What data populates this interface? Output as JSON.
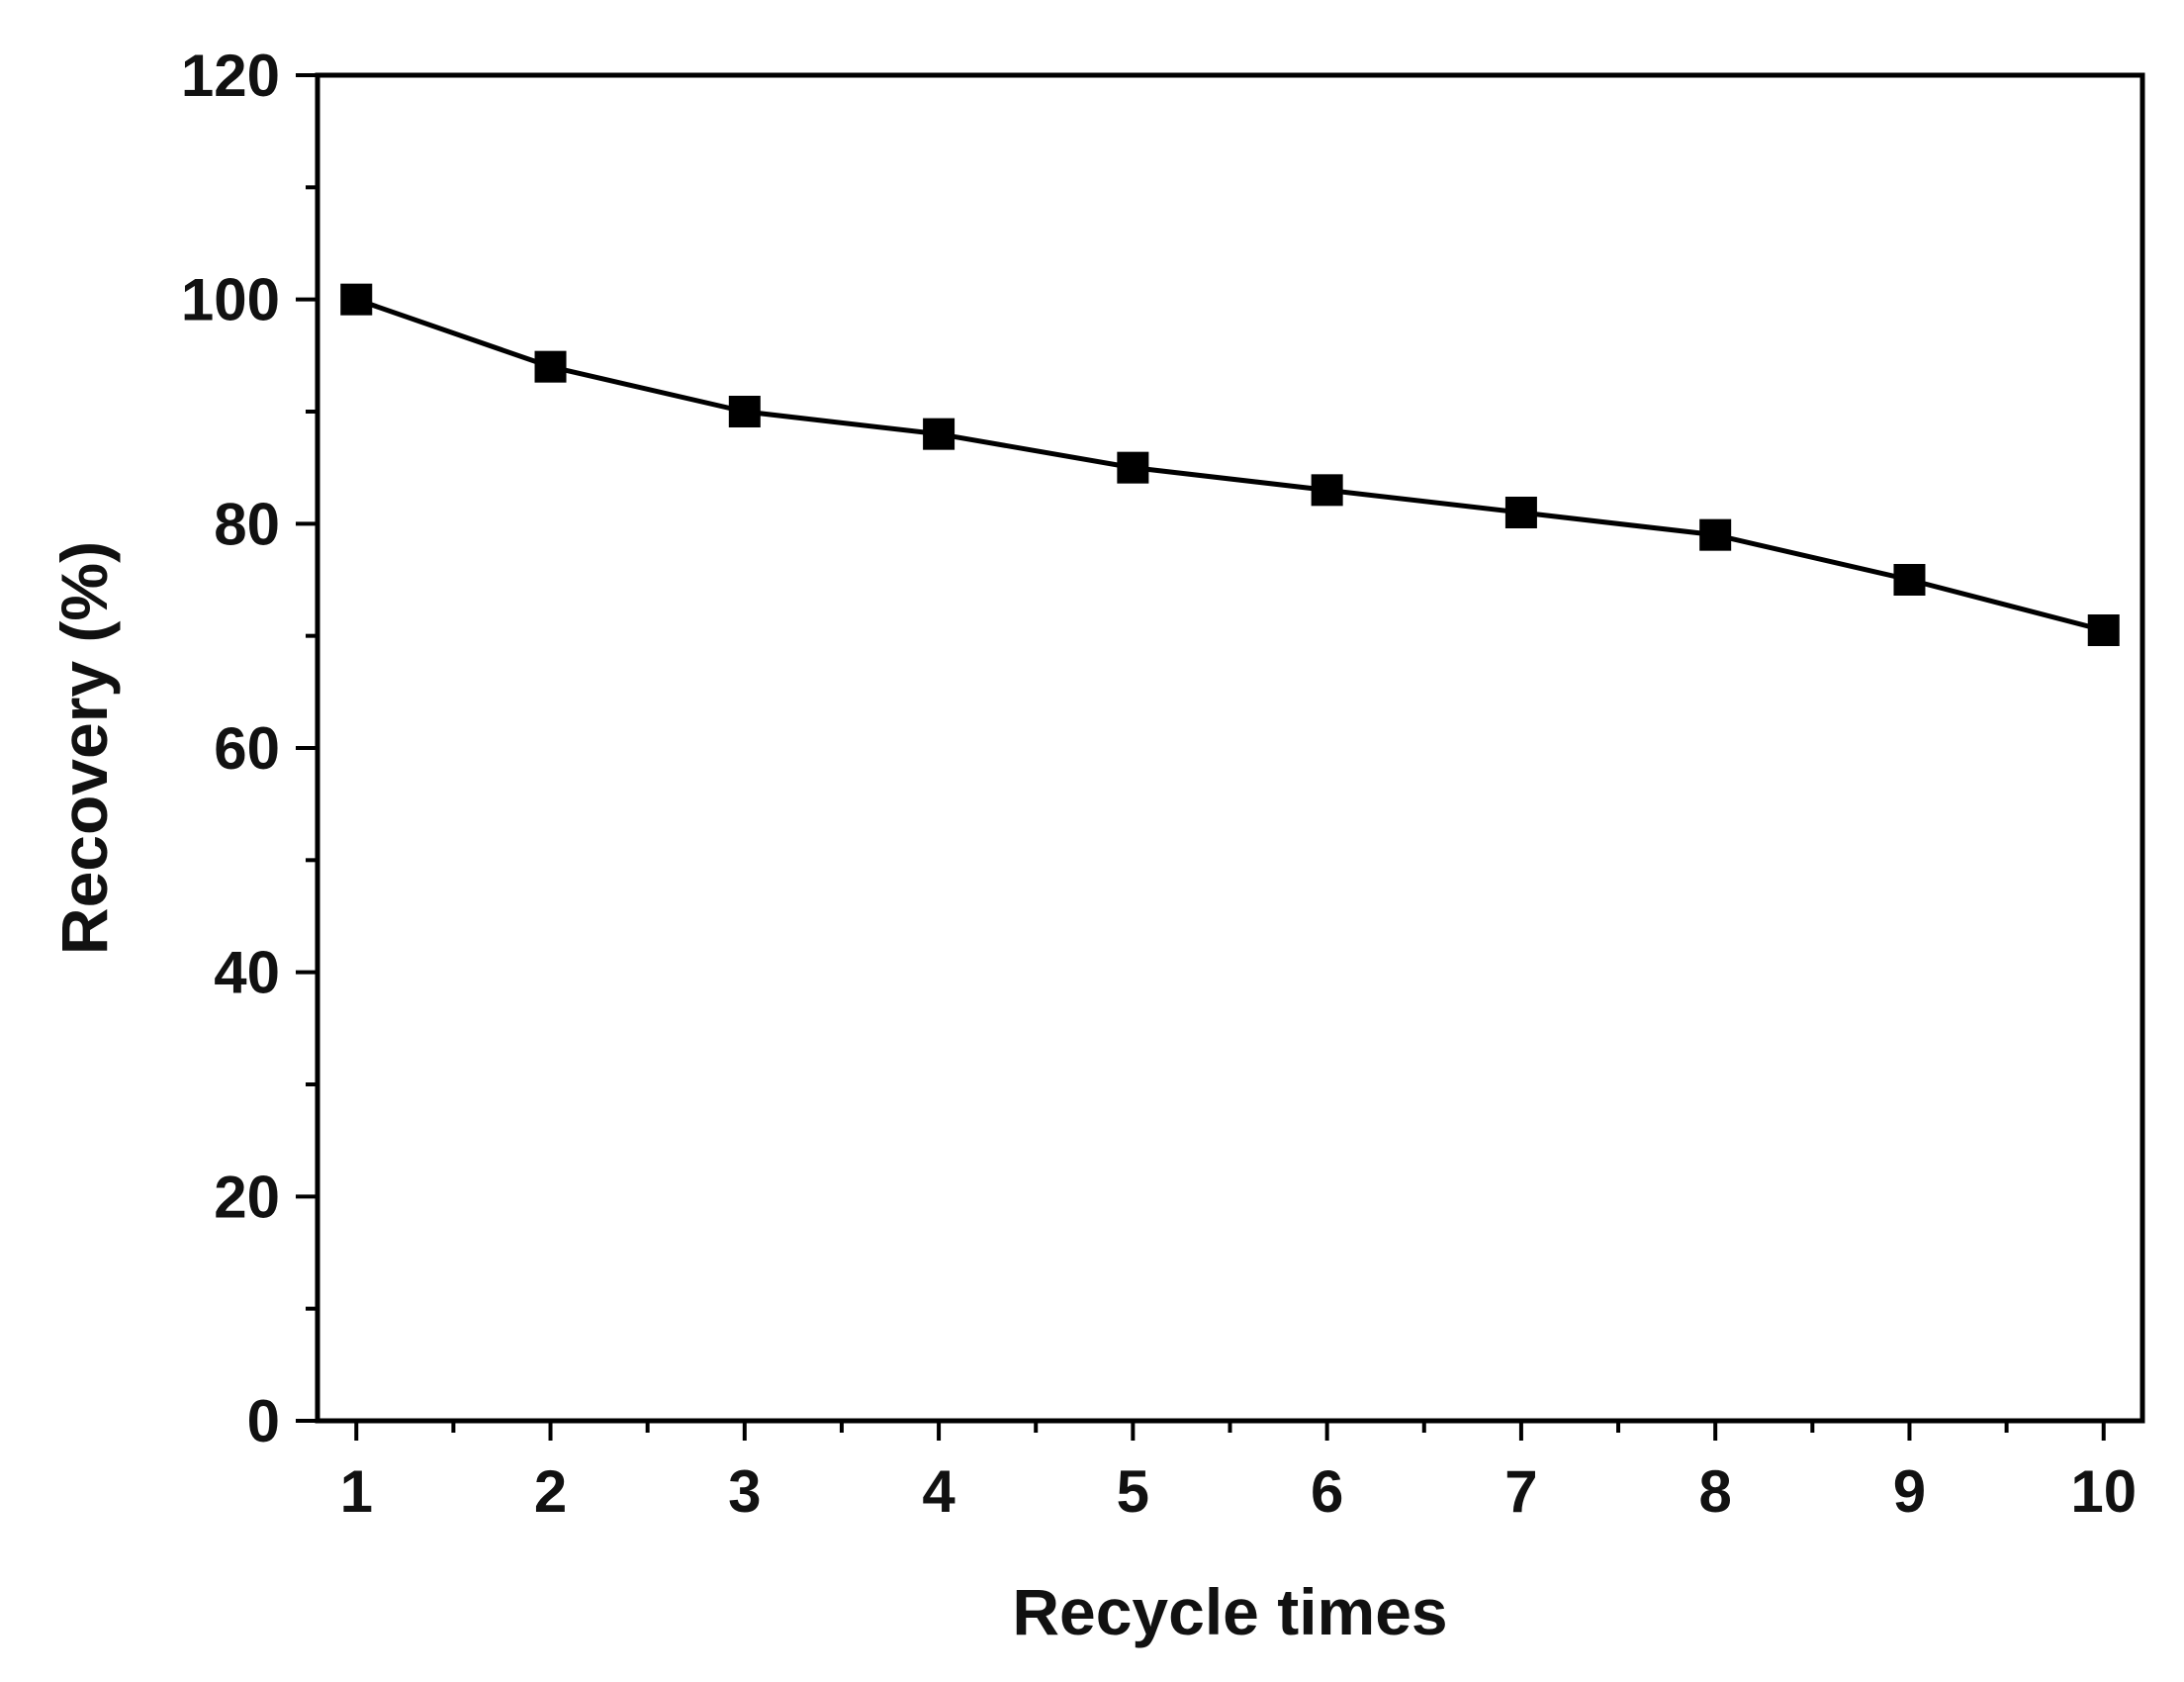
{
  "chart_data": {
    "type": "line",
    "title": "",
    "xlabel": "Recycle times",
    "ylabel": "Recovery (%)",
    "x": [
      1,
      2,
      3,
      4,
      5,
      6,
      7,
      8,
      9,
      10
    ],
    "series": [
      {
        "values": [
          100,
          94,
          90,
          88,
          85,
          83,
          81,
          79,
          75,
          70.5
        ]
      }
    ],
    "xlim": [
      0.8,
      10.2
    ],
    "ylim": [
      0,
      120
    ],
    "x_ticks": [
      1,
      2,
      3,
      4,
      5,
      6,
      7,
      8,
      9,
      10
    ],
    "y_ticks": [
      0,
      20,
      40,
      60,
      80,
      100,
      120
    ],
    "x_tick_labels": [
      "1",
      "2",
      "3",
      "4",
      "5",
      "6",
      "7",
      "8",
      "9",
      "10"
    ],
    "y_tick_labels": [
      "0",
      "20",
      "40",
      "60",
      "80",
      "100",
      "120"
    ],
    "marker": "square",
    "grid": false,
    "legend": "none",
    "colors": {
      "line": "#000000",
      "marker": "#000000",
      "axis": "#000000"
    }
  }
}
